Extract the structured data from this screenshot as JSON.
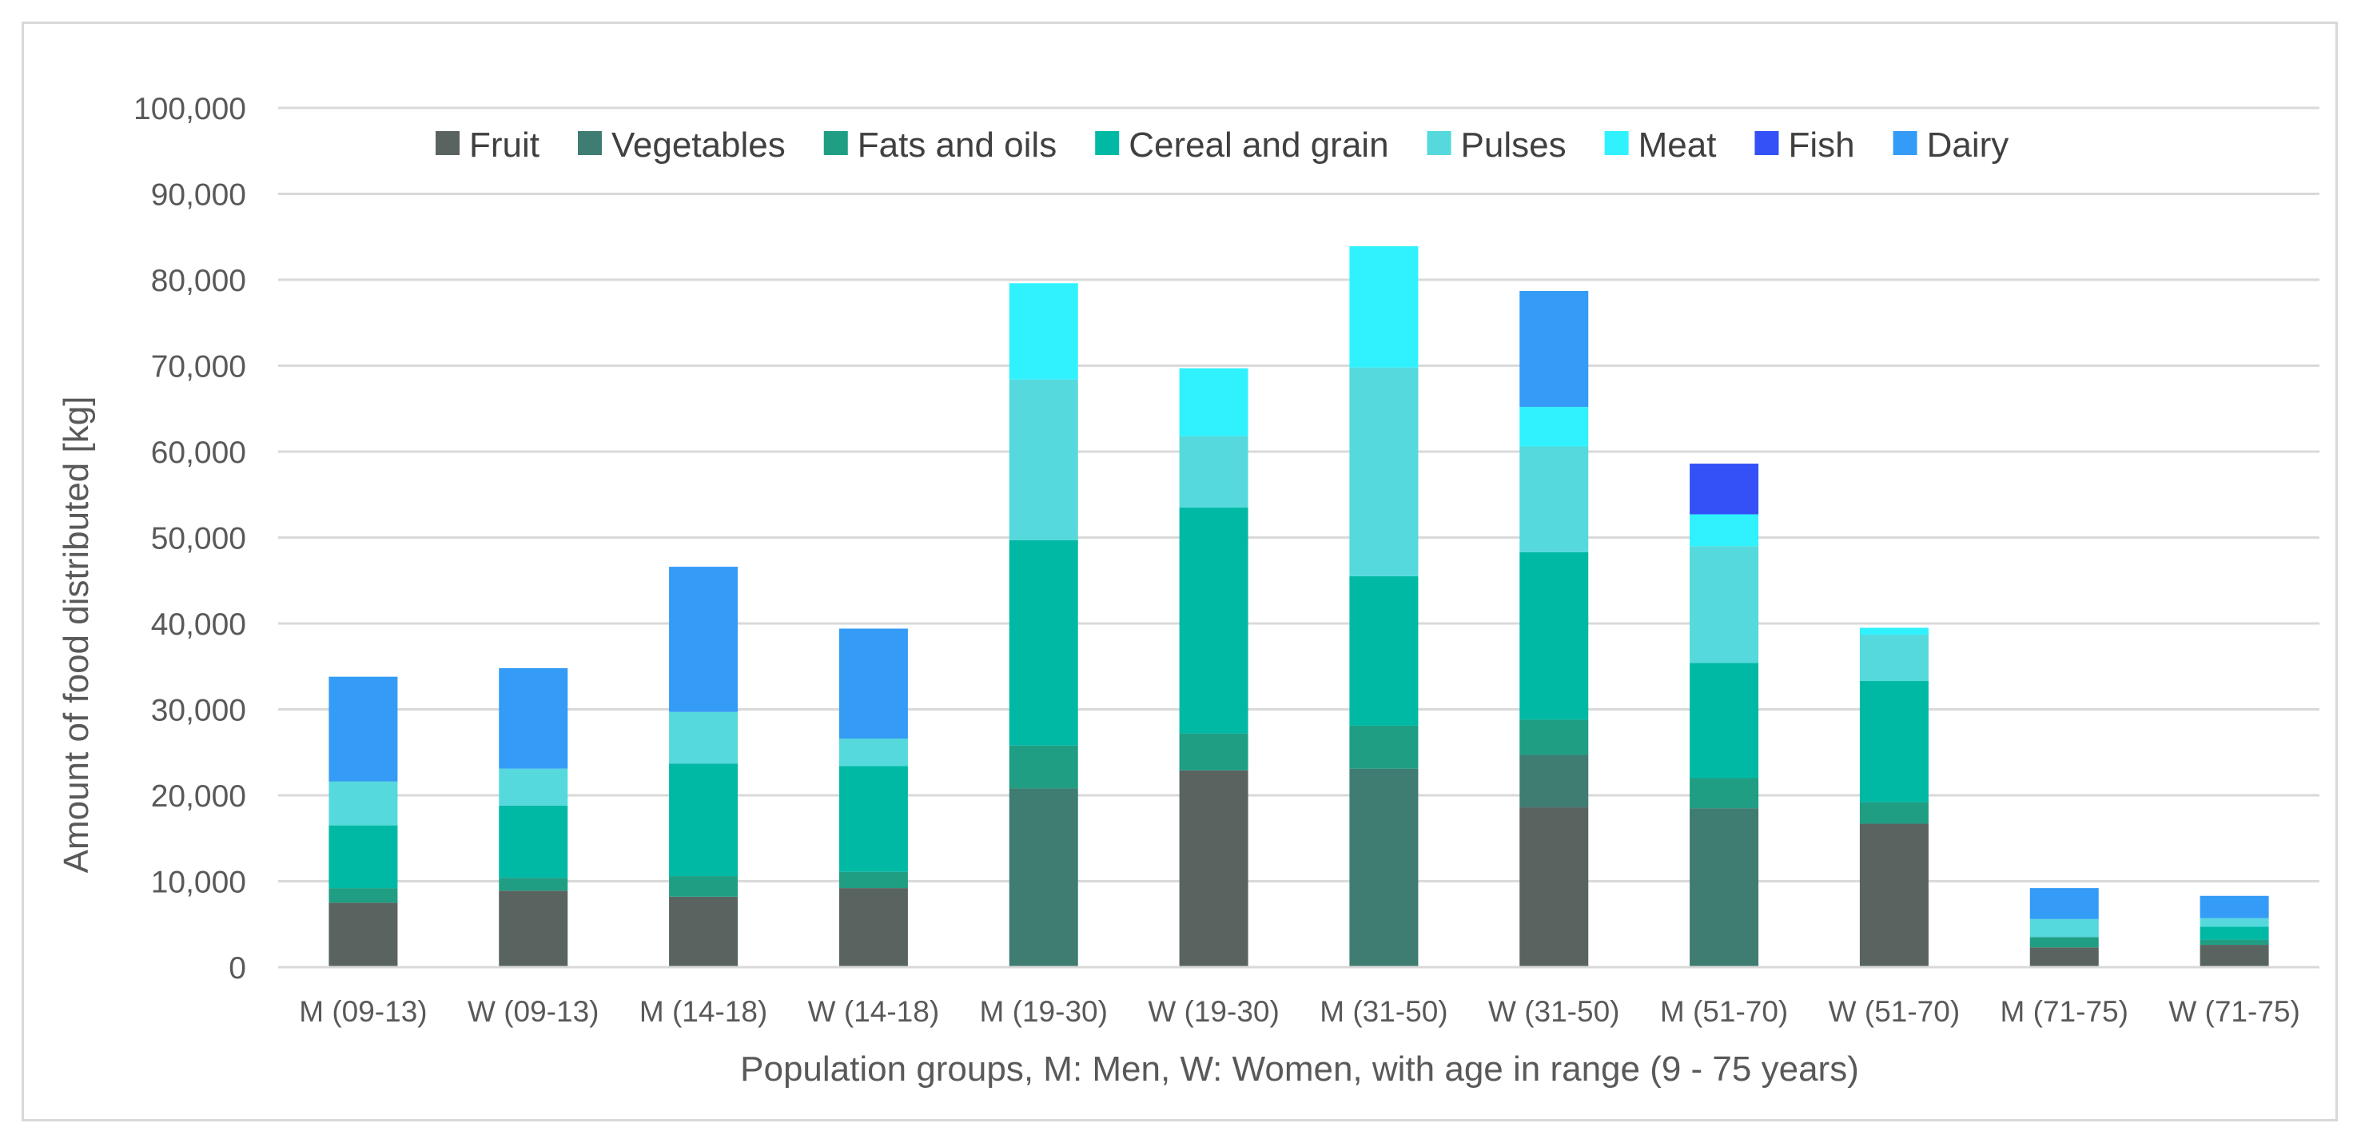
{
  "chart_data": {
    "type": "bar",
    "stacked": true,
    "title": "",
    "xlabel": "Population groups, M: Men, W: Women, with age in range (9 - 75 years)",
    "ylabel": "Amount of food distributed [kg]",
    "ylim": [
      0,
      100000
    ],
    "yticks": [
      "0",
      "10,000",
      "20,000",
      "30,000",
      "40,000",
      "50,000",
      "60,000",
      "70,000",
      "80,000",
      "90,000",
      "100,000"
    ],
    "grid": true,
    "legend_position": "top",
    "categories": [
      "M (09-13)",
      "W (09-13)",
      "M (14-18)",
      "W (14-18)",
      "M (19-30)",
      "W (19-30)",
      "M (31-50)",
      "W (31-50)",
      "M (51-70)",
      "W (51-70)",
      "M (71-75)",
      "W (71-75)"
    ],
    "series": [
      {
        "name": "Fruit",
        "color": "#596461",
        "values": [
          7500,
          8900,
          8200,
          9200,
          0,
          22900,
          0,
          18600,
          0,
          16700,
          2300,
          2600
        ]
      },
      {
        "name": "Vegetables",
        "color": "#3f7c72",
        "values": [
          0,
          0,
          0,
          0,
          20800,
          0,
          23100,
          6100,
          18500,
          0,
          0,
          0
        ]
      },
      {
        "name": "Fats and oils",
        "color": "#1f9e84",
        "values": [
          1700,
          1500,
          2400,
          1900,
          5000,
          4300,
          5000,
          4100,
          3500,
          2500,
          1200,
          600
        ]
      },
      {
        "name": "Cereal and grain",
        "color": "#00b9a5",
        "values": [
          7300,
          8400,
          13100,
          12300,
          23900,
          26300,
          17400,
          19500,
          13400,
          14100,
          0,
          1500
        ]
      },
      {
        "name": "Pulses",
        "color": "#55d9dc",
        "values": [
          5100,
          4300,
          6000,
          3200,
          18700,
          8300,
          24300,
          12300,
          13600,
          5400,
          2100,
          1000
        ]
      },
      {
        "name": "Meat",
        "color": "#30f2ff",
        "values": [
          0,
          0,
          0,
          0,
          11200,
          7900,
          14100,
          4600,
          3700,
          800,
          0,
          0
        ]
      },
      {
        "name": "Fish",
        "color": "#3351f7",
        "values": [
          0,
          0,
          0,
          0,
          0,
          0,
          0,
          0,
          5900,
          0,
          0,
          0
        ]
      },
      {
        "name": "Dairy",
        "color": "#349bf6",
        "values": [
          12200,
          11700,
          16900,
          12800,
          0,
          0,
          0,
          13500,
          0,
          0,
          3600,
          2600
        ]
      }
    ]
  }
}
